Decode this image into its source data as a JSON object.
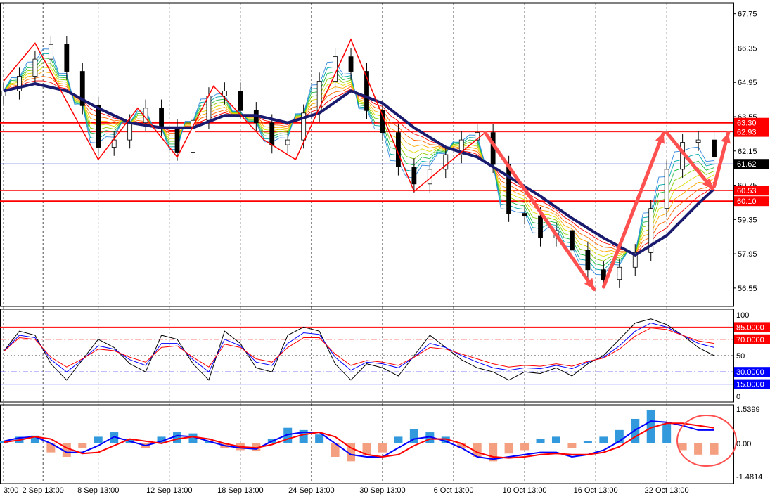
{
  "chart_data": [
    {
      "type": "line",
      "panel": "price",
      "instrument_description": "candlestick price chart with rainbow moving-average ribbon and thick navy moving average",
      "y_ticks": [
        67.75,
        66.35,
        64.95,
        63.55,
        62.15,
        60.75,
        59.35,
        57.95,
        56.55
      ],
      "ylim": [
        55.8,
        68.2
      ],
      "price_tags": [
        {
          "label": "63.30",
          "value": 63.3,
          "color": "#ff0000"
        },
        {
          "label": "62.93",
          "value": 62.93,
          "color": "#ff0000"
        },
        {
          "label": "61.62",
          "value": 61.62,
          "color": "#000000"
        },
        {
          "label": "60.53",
          "value": 60.53,
          "color": "#ff0000"
        },
        {
          "label": "60.10",
          "value": 60.1,
          "color": "#ff0000"
        }
      ],
      "horizontal_levels": [
        {
          "value": 63.3,
          "color": "#ff0000",
          "bold": true
        },
        {
          "value": 62.93,
          "color": "#ff0000",
          "bold": false
        },
        {
          "value": 61.62,
          "color": "#3355dd",
          "bold": false
        },
        {
          "value": 60.53,
          "color": "#ff0000",
          "bold": false
        },
        {
          "value": 60.1,
          "color": "#ff0000",
          "bold": true
        }
      ],
      "close_series": [
        {
          "t": 0,
          "v": 64.6
        },
        {
          "t": 1,
          "v": 65.2
        },
        {
          "t": 2,
          "v": 65.9
        },
        {
          "t": 3,
          "v": 66.5
        },
        {
          "t": 4,
          "v": 65.4
        },
        {
          "t": 5,
          "v": 64.0
        },
        {
          "t": 6,
          "v": 62.3
        },
        {
          "t": 7,
          "v": 62.6
        },
        {
          "t": 8,
          "v": 63.3
        },
        {
          "t": 9,
          "v": 63.9
        },
        {
          "t": 10,
          "v": 63.1
        },
        {
          "t": 11,
          "v": 62.1
        },
        {
          "t": 12,
          "v": 63.4
        },
        {
          "t": 13,
          "v": 64.4
        },
        {
          "t": 14,
          "v": 64.6
        },
        {
          "t": 15,
          "v": 63.8
        },
        {
          "t": 16,
          "v": 63.3
        },
        {
          "t": 17,
          "v": 62.4
        },
        {
          "t": 18,
          "v": 62.6
        },
        {
          "t": 19,
          "v": 63.7
        },
        {
          "t": 20,
          "v": 65.0
        },
        {
          "t": 21,
          "v": 66.0
        },
        {
          "t": 22,
          "v": 65.4
        },
        {
          "t": 23,
          "v": 63.8
        },
        {
          "t": 24,
          "v": 62.9
        },
        {
          "t": 25,
          "v": 61.5
        },
        {
          "t": 26,
          "v": 60.8
        },
        {
          "t": 27,
          "v": 61.4
        },
        {
          "t": 28,
          "v": 62.0
        },
        {
          "t": 29,
          "v": 62.6
        },
        {
          "t": 30,
          "v": 62.9
        },
        {
          "t": 31,
          "v": 61.6
        },
        {
          "t": 32,
          "v": 59.6
        },
        {
          "t": 33,
          "v": 59.5
        },
        {
          "t": 34,
          "v": 58.6
        },
        {
          "t": 35,
          "v": 58.9
        },
        {
          "t": 36,
          "v": 58.1
        },
        {
          "t": 37,
          "v": 57.3
        },
        {
          "t": 38,
          "v": 56.9
        },
        {
          "t": 39,
          "v": 57.4
        },
        {
          "t": 40,
          "v": 58.0
        },
        {
          "t": 41,
          "v": 59.8
        },
        {
          "t": 42,
          "v": 61.4
        },
        {
          "t": 43,
          "v": 62.5
        },
        {
          "t": 44,
          "v": 62.6
        },
        {
          "t": 45,
          "v": 61.9
        }
      ],
      "ma_series": [
        {
          "t": 0,
          "v": 64.6
        },
        {
          "t": 2,
          "v": 64.9
        },
        {
          "t": 4,
          "v": 64.6
        },
        {
          "t": 6,
          "v": 63.9
        },
        {
          "t": 8,
          "v": 63.3
        },
        {
          "t": 10,
          "v": 63.1
        },
        {
          "t": 12,
          "v": 63.1
        },
        {
          "t": 14,
          "v": 63.6
        },
        {
          "t": 16,
          "v": 63.6
        },
        {
          "t": 18,
          "v": 63.3
        },
        {
          "t": 20,
          "v": 63.7
        },
        {
          "t": 22,
          "v": 64.6
        },
        {
          "t": 24,
          "v": 64.1
        },
        {
          "t": 26,
          "v": 63.1
        },
        {
          "t": 28,
          "v": 62.3
        },
        {
          "t": 30,
          "v": 61.9
        },
        {
          "t": 32,
          "v": 61.1
        },
        {
          "t": 34,
          "v": 60.3
        },
        {
          "t": 36,
          "v": 59.4
        },
        {
          "t": 38,
          "v": 58.6
        },
        {
          "t": 40,
          "v": 57.9
        },
        {
          "t": 42,
          "v": 58.7
        },
        {
          "t": 44,
          "v": 60.0
        },
        {
          "t": 45,
          "v": 60.6
        }
      ],
      "zigzag_red": [
        {
          "t": 0,
          "v": 65.0
        },
        {
          "t": 2,
          "v": 66.55
        },
        {
          "t": 6,
          "v": 61.8
        },
        {
          "t": 8.5,
          "v": 63.9
        },
        {
          "t": 11,
          "v": 61.9
        },
        {
          "t": 13.3,
          "v": 64.8
        },
        {
          "t": 16.5,
          "v": 62.6
        },
        {
          "t": 18.5,
          "v": 61.8
        },
        {
          "t": 22,
          "v": 66.7
        },
        {
          "t": 26,
          "v": 60.5
        },
        {
          "t": 30.5,
          "v": 62.9
        }
      ]
    },
    {
      "type": "line",
      "panel": "oscillator",
      "y_ticks": [
        100,
        50,
        0
      ],
      "ylim": [
        0,
        100
      ],
      "level_tags": [
        {
          "label": "85.0000",
          "value": 85,
          "color": "#ff0000"
        },
        {
          "label": "70.0000",
          "value": 70,
          "color": "#ff0000"
        },
        {
          "label": "30.0000",
          "value": 30,
          "color": "#0000ff"
        },
        {
          "label": "15.0000",
          "value": 15,
          "color": "#0000ff"
        }
      ],
      "series": [
        {
          "values": [
            55,
            80,
            75,
            40,
            20,
            45,
            70,
            60,
            40,
            30,
            75,
            70,
            40,
            20,
            80,
            65,
            35,
            30,
            75,
            85,
            80,
            40,
            20,
            40,
            35,
            25,
            50,
            75,
            60,
            45,
            35,
            30,
            20,
            30,
            28,
            35,
            25,
            40,
            50,
            70,
            90,
            95,
            88,
            75,
            60,
            50
          ],
          "color": "#000000"
        },
        {
          "values": [
            55,
            75,
            72,
            45,
            30,
            45,
            62,
            58,
            45,
            38,
            65,
            65,
            45,
            30,
            70,
            62,
            42,
            38,
            65,
            78,
            76,
            48,
            32,
            42,
            40,
            35,
            48,
            65,
            60,
            50,
            42,
            35,
            32,
            35,
            34,
            38,
            34,
            42,
            48,
            62,
            80,
            90,
            85,
            75,
            65,
            60
          ],
          "color": "#0000ff"
        },
        {
          "values": [
            55,
            72,
            70,
            48,
            36,
            46,
            58,
            56,
            48,
            42,
            60,
            62,
            48,
            36,
            64,
            60,
            46,
            42,
            60,
            72,
            72,
            52,
            38,
            44,
            42,
            38,
            48,
            60,
            58,
            52,
            46,
            40,
            36,
            38,
            37,
            40,
            37,
            43,
            47,
            58,
            74,
            84,
            82,
            75,
            68,
            65
          ],
          "color": "#ff0000"
        }
      ]
    },
    {
      "type": "bar",
      "panel": "macd",
      "y_ticks": [
        1.5399,
        0.0,
        -1.4814
      ],
      "ylim": [
        -1.4814,
        1.5399
      ],
      "histogram": [
        0.1,
        0.3,
        0.35,
        -0.4,
        -0.6,
        -0.2,
        0.3,
        0.5,
        0.2,
        -0.2,
        0.3,
        0.5,
        0.45,
        0.1,
        -0.2,
        -0.3,
        -0.35,
        0.2,
        0.7,
        0.6,
        0.4,
        -0.6,
        -0.8,
        -0.5,
        -0.4,
        0.3,
        0.65,
        0.5,
        0.3,
        -0.2,
        -0.6,
        -0.8,
        -0.45,
        -0.3,
        0.2,
        0.3,
        -0.2,
        0.1,
        0.3,
        0.6,
        1.1,
        1.5,
        0.9,
        -0.3,
        -0.5,
        -0.5
      ],
      "series": [
        {
          "values": [
            0.1,
            0.25,
            0.3,
            0.0,
            -0.4,
            -0.4,
            -0.1,
            0.3,
            0.1,
            -0.1,
            0.1,
            0.35,
            0.3,
            0.1,
            -0.1,
            -0.2,
            -0.25,
            0.1,
            0.4,
            0.5,
            0.5,
            0.0,
            -0.5,
            -0.6,
            -0.6,
            -0.2,
            0.2,
            0.3,
            0.1,
            -0.2,
            -0.6,
            -0.7,
            -0.6,
            -0.5,
            -0.4,
            -0.4,
            -0.6,
            -0.5,
            -0.3,
            0.1,
            0.6,
            1.0,
            0.95,
            0.8,
            0.6,
            0.6
          ],
          "color": "#0000ff"
        },
        {
          "values": [
            0.05,
            0.15,
            0.3,
            0.2,
            -0.2,
            -0.45,
            -0.4,
            -0.1,
            0.2,
            0.1,
            0.0,
            0.2,
            0.3,
            0.2,
            0.0,
            -0.15,
            -0.2,
            -0.05,
            0.2,
            0.4,
            0.5,
            0.3,
            -0.2,
            -0.5,
            -0.6,
            -0.5,
            -0.1,
            0.2,
            0.2,
            0.0,
            -0.4,
            -0.6,
            -0.65,
            -0.6,
            -0.5,
            -0.45,
            -0.5,
            -0.5,
            -0.4,
            -0.15,
            0.3,
            0.7,
            0.9,
            0.9,
            0.8,
            0.7
          ],
          "color": "#ff0000"
        }
      ]
    }
  ],
  "x_axis": {
    "labels": [
      "3:00",
      "2 Sep 13:00",
      "8 Sep 13:00",
      "12 Sep 13:00",
      "18 Sep 13:00",
      "24 Sep 13:00",
      "30 Sep 13:00",
      "6 Oct 13:00",
      "10 Oct 13:00",
      "16 Oct 13:00",
      "22 Oct 13:00"
    ],
    "label_t": [
      0,
      2.5,
      6,
      10.5,
      15,
      19.5,
      24,
      28.5,
      33,
      37.5,
      42
    ]
  }
}
